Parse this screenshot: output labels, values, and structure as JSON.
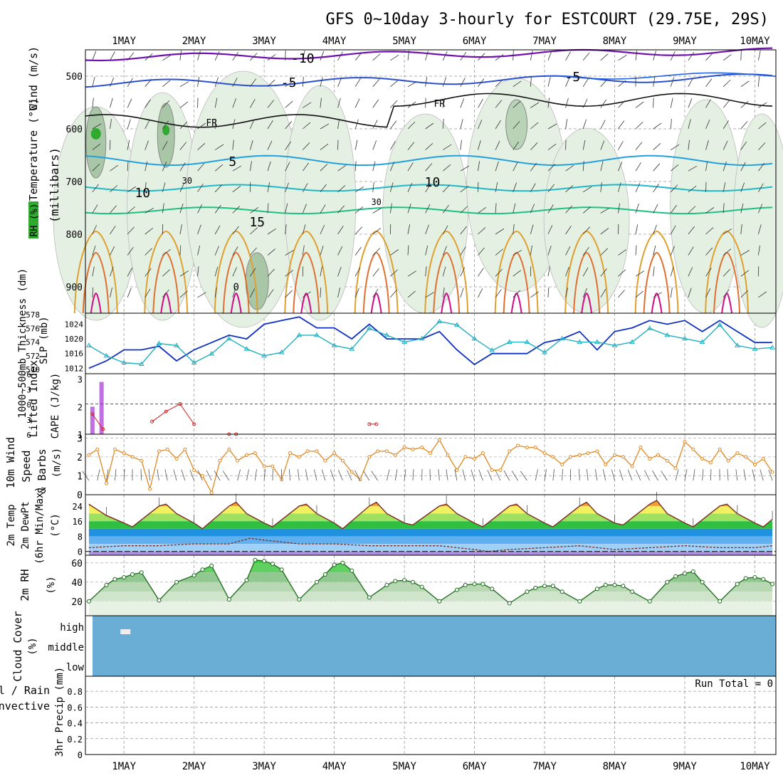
{
  "title": "GFS 0~10day 3-hourly for ESTCOURT (29.75E, 29S)",
  "dates": [
    "1MAY",
    "2MAY",
    "3MAY",
    "4MAY",
    "5MAY",
    "6MAY",
    "7MAY",
    "8MAY",
    "9MAY",
    "10MAY"
  ],
  "colors": {
    "rh_green": "#2eaa2e",
    "cape": "#c070e0",
    "lifted": "#d02020",
    "wind": "#e08820",
    "thick": "#20b0c0",
    "slp": "#1030c0",
    "temp_purple": "#7010b0",
    "cloud": "#6aaed6",
    "grid": "#999999"
  },
  "panel_upper": {
    "ylabel_wind": "Wind (m/s)",
    "ylabel_temp": "Temperature (°C)",
    "ylabel_rh": "RH (%)",
    "ylabel_mb": "(millibars)",
    "yticks": [
      "500",
      "600",
      "700",
      "800",
      "900"
    ],
    "contour_labels": [
      "-10",
      "-5",
      "FR",
      "FR",
      "5",
      "10",
      "10",
      "15",
      "30",
      "30",
      "0"
    ]
  },
  "panel_slp": {
    "ylabel_thick": "1000~500mb Thickness (dm)",
    "ylabel_slp": "SLP (mb)",
    "thick_ticks": [
      "578",
      "576",
      "574",
      "572",
      "570"
    ],
    "slp_ticks": [
      "1024",
      "1020",
      "1016",
      "1012"
    ]
  },
  "panel_cape": {
    "ylabel_li": "Lifted Index",
    "ylabel_cape": "CAPE (J/kg)",
    "li_ticks": [
      "-6",
      "-3",
      "0",
      "3",
      "6"
    ],
    "cape_ticks": [
      "3",
      "2",
      "1"
    ]
  },
  "panel_wind10": {
    "ylabel_a": "10m Wind",
    "ylabel_b": "Speed",
    "ylabel_c": "& Barbs",
    "ylabel_units": "(m/s)",
    "yticks": [
      "3",
      "2",
      "1",
      "0"
    ]
  },
  "panel_temp": {
    "ylabel_a": "2m Temp",
    "ylabel_b": "2m DewPt",
    "ylabel_c": "(6hr Min/Max)",
    "ylabel_units": "(°C)",
    "yticks": [
      "24",
      "16",
      "8",
      "0"
    ]
  },
  "panel_rh": {
    "ylabel": "2m RH",
    "ylabel_units": "(%)",
    "yticks": [
      "60",
      "40",
      "20"
    ]
  },
  "panel_cloud": {
    "ylabel": "Cloud Cover",
    "ylabel_units": "(%)",
    "levels": [
      "high",
      "middle",
      "low"
    ]
  },
  "panel_precip": {
    "ylabel_total": "Total / Rain",
    "ylabel_conv": "Convective",
    "ylabel": "3hr Precip (mm)",
    "yticks": [
      "0.8",
      "0.6",
      "0.4",
      "0.2",
      "0"
    ],
    "run_total": "Run Total = 0"
  },
  "chart_data": {
    "type": "line",
    "title": "GFS 0~10day 3-hourly for ESTCOURT (29.75E, 29S)",
    "x_ticks": [
      "1MAY",
      "2MAY",
      "3MAY",
      "4MAY",
      "5MAY",
      "6MAY",
      "7MAY",
      "8MAY",
      "9MAY",
      "10MAY"
    ],
    "x_range_days": [
      0.45,
      10.3
    ],
    "series": [
      {
        "name": "SLP (mb)",
        "ylim": [
          1010.5,
          1027
        ],
        "x": [
          0.5,
          0.75,
          1.0,
          1.25,
          1.5,
          1.75,
          2.0,
          2.25,
          2.5,
          2.75,
          3.0,
          3.25,
          3.5,
          3.75,
          4.0,
          4.25,
          4.5,
          4.75,
          5.0,
          5.25,
          5.5,
          5.75,
          6.0,
          6.25,
          6.5,
          6.75,
          7.0,
          7.25,
          7.5,
          7.75,
          8.0,
          8.25,
          8.5,
          8.75,
          9.0,
          9.25,
          9.5,
          9.75,
          10.0,
          10.25
        ],
        "values": [
          1012,
          1014,
          1017,
          1017,
          1018,
          1014,
          1017,
          1019,
          1021,
          1020,
          1024,
          1025,
          1026,
          1023,
          1023,
          1020,
          1024,
          1020,
          1020,
          1020,
          1022,
          1017,
          1013,
          1016,
          1016,
          1016,
          1019,
          1020,
          1022,
          1017,
          1022,
          1023,
          1025,
          1024,
          1025,
          1022,
          1025,
          1022,
          1019,
          1019
        ]
      },
      {
        "name": "1000~500mb Thickness (dm)",
        "ylim": [
          569.4,
          578.2
        ],
        "x": [
          0.5,
          0.75,
          1.0,
          1.25,
          1.5,
          1.75,
          2.0,
          2.25,
          2.5,
          2.75,
          3.0,
          3.25,
          3.5,
          3.75,
          4.0,
          4.25,
          4.5,
          4.75,
          5.0,
          5.25,
          5.5,
          5.75,
          6.0,
          6.25,
          6.5,
          6.75,
          7.0,
          7.25,
          7.5,
          7.75,
          8.0,
          8.25,
          8.5,
          8.75,
          9.0,
          9.25,
          9.5,
          9.75,
          10.0,
          10.25
        ],
        "values": [
          573.5,
          572,
          571,
          570.8,
          573.8,
          573.5,
          571,
          572.3,
          574.5,
          573,
          572,
          572.5,
          575,
          575,
          573.5,
          573,
          576,
          575,
          574,
          574.5,
          577,
          576.5,
          574.5,
          572.8,
          574,
          574,
          572.5,
          574.5,
          574,
          574,
          573.5,
          574,
          576,
          575,
          574.5,
          574,
          576.5,
          573.5,
          573,
          573.2
        ]
      },
      {
        "name": "CAPE (J/kg)",
        "ylim": [
          1,
          3.2
        ],
        "x": [
          0.55,
          0.68
        ],
        "values": [
          2.0,
          2.9
        ]
      },
      {
        "name": "Lifted Index",
        "ylim": [
          6,
          -6
        ],
        "x": [
          0.55,
          0.7,
          1.4,
          1.6,
          1.8,
          2.0,
          2.5,
          2.6,
          4.5,
          4.6
        ],
        "values": [
          2,
          5,
          3.5,
          1.5,
          0,
          4,
          6,
          6,
          4,
          4
        ]
      },
      {
        "name": "10m Wind Speed (m/s)",
        "ylim": [
          0,
          3.2
        ],
        "x": [
          0.5,
          0.62,
          0.75,
          0.87,
          1.0,
          1.12,
          1.25,
          1.37,
          1.5,
          1.62,
          1.75,
          1.87,
          2.0,
          2.12,
          2.25,
          2.37,
          2.5,
          2.62,
          2.75,
          2.87,
          3.0,
          3.12,
          3.25,
          3.37,
          3.5,
          3.62,
          3.75,
          3.87,
          4.0,
          4.12,
          4.25,
          4.37,
          4.5,
          4.62,
          4.75,
          4.87,
          5.0,
          5.12,
          5.25,
          5.37,
          5.5,
          5.62,
          5.75,
          5.87,
          6.0,
          6.12,
          6.25,
          6.37,
          6.5,
          6.62,
          6.75,
          6.87,
          7.0,
          7.12,
          7.25,
          7.37,
          7.5,
          7.62,
          7.75,
          7.87,
          8.0,
          8.12,
          8.25,
          8.37,
          8.5,
          8.62,
          8.75,
          8.87,
          9.0,
          9.12,
          9.25,
          9.37,
          9.5,
          9.62,
          9.75,
          9.87,
          10.0,
          10.12,
          10.25
        ],
        "values": [
          2.1,
          2.4,
          0.6,
          2.4,
          2.2,
          2.0,
          1.8,
          0.3,
          2.3,
          2.4,
          1.9,
          2.4,
          1.3,
          1.0,
          0.1,
          1.8,
          2.4,
          1.8,
          2.1,
          2.2,
          1.5,
          1.5,
          0.8,
          2.2,
          2.0,
          2.3,
          2.3,
          1.8,
          2.2,
          1.8,
          1.2,
          0.8,
          2.0,
          2.3,
          2.3,
          2.1,
          2.5,
          2.4,
          2.5,
          2.2,
          2.9,
          2.1,
          1.3,
          2.0,
          1.9,
          2.2,
          1.3,
          1.3,
          2.3,
          2.6,
          2.5,
          2.5,
          2.2,
          2.0,
          1.6,
          2.0,
          2.1,
          2.2,
          2.3,
          1.6,
          2.1,
          2.0,
          1.5,
          2.5,
          1.9,
          2.1,
          1.8,
          1.4,
          2.8,
          2.4,
          1.9,
          1.7,
          2.4,
          1.8,
          2.2,
          2.0,
          1.6,
          1.9,
          1.2
        ]
      },
      {
        "name": "2m Temp (°C)",
        "ylim": [
          -2,
          30
        ],
        "x": [
          0.5,
          0.75,
          1.0,
          1.12,
          1.5,
          1.6,
          1.75,
          2.0,
          2.12,
          2.5,
          2.6,
          2.75,
          3.0,
          3.12,
          3.5,
          3.6,
          3.75,
          4.0,
          4.12,
          4.5,
          4.6,
          4.75,
          5.0,
          5.12,
          5.5,
          5.6,
          5.75,
          6.0,
          6.12,
          6.5,
          6.6,
          6.75,
          7.0,
          7.12,
          7.5,
          7.6,
          7.75,
          8.0,
          8.12,
          8.5,
          8.6,
          8.75,
          9.0,
          9.12,
          9.5,
          9.6,
          9.75,
          10.0,
          10.12,
          10.25
        ],
        "values": [
          25,
          19,
          15,
          13,
          24,
          25,
          20,
          15,
          12,
          24,
          26,
          20,
          15,
          13,
          24,
          25,
          20,
          15,
          12,
          24,
          26,
          20,
          15,
          14,
          24,
          25,
          20,
          15,
          13,
          24,
          25,
          20,
          15,
          13,
          24,
          26,
          20,
          15,
          14,
          25,
          27,
          20,
          15,
          13,
          24,
          25,
          20,
          15,
          13,
          17
        ]
      },
      {
        "name": "2m DewPt (°C)",
        "ylim": [
          -2,
          30
        ],
        "x": [
          0.5,
          1.0,
          1.5,
          2.0,
          2.5,
          2.8,
          3.0,
          3.5,
          4.0,
          4.5,
          5.0,
          5.5,
          6.0,
          6.2,
          6.5,
          7.0,
          7.5,
          8.0,
          8.5,
          9.0,
          9.5,
          10.0,
          10.25
        ],
        "values": [
          2,
          3,
          3,
          4,
          4,
          7,
          6,
          4,
          4,
          3,
          3,
          3,
          1,
          0,
          1,
          2,
          3,
          1,
          2,
          3,
          2,
          2,
          3
        ]
      },
      {
        "name": "2m RH (%)",
        "ylim": [
          5,
          68
        ],
        "x": [
          0.5,
          0.75,
          0.87,
          1.0,
          1.12,
          1.25,
          1.5,
          1.75,
          2.0,
          2.12,
          2.25,
          2.5,
          2.75,
          2.87,
          3.0,
          3.12,
          3.25,
          3.5,
          3.75,
          3.87,
          4.0,
          4.12,
          4.25,
          4.5,
          4.75,
          4.87,
          5.0,
          5.12,
          5.25,
          5.5,
          5.75,
          5.87,
          6.0,
          6.12,
          6.25,
          6.5,
          6.75,
          6.87,
          7.0,
          7.12,
          7.25,
          7.5,
          7.75,
          7.87,
          8.0,
          8.12,
          8.25,
          8.5,
          8.75,
          8.87,
          9.0,
          9.12,
          9.25,
          9.5,
          9.75,
          9.87,
          10.0,
          10.12,
          10.25
        ],
        "values": [
          20,
          37,
          43,
          45,
          48,
          50,
          21,
          40,
          47,
          53,
          57,
          22,
          42,
          63,
          62,
          59,
          53,
          22,
          40,
          48,
          58,
          60,
          52,
          24,
          37,
          41,
          42,
          40,
          35,
          20,
          32,
          37,
          38,
          38,
          33,
          18,
          30,
          34,
          36,
          36,
          30,
          20,
          33,
          37,
          37,
          36,
          30,
          20,
          40,
          46,
          49,
          51,
          40,
          20,
          38,
          44,
          45,
          43,
          38
        ]
      },
      {
        "name": "3hr Precip (mm)",
        "ylim": [
          0,
          0.9
        ],
        "x": [
          0.5,
          10.25
        ],
        "values": [
          0,
          0
        ]
      }
    ],
    "cloud_cover": {
      "high": 0,
      "middle": 0,
      "low": 0
    },
    "upper_air": {
      "yaxis": "pressure (mb)",
      "ylim": [
        450,
        950
      ],
      "contours_temp_c": [
        -10,
        -5,
        0,
        5,
        10,
        15
      ],
      "rh_contours": [
        30
      ]
    },
    "xlabel": "",
    "ylabel": ""
  }
}
